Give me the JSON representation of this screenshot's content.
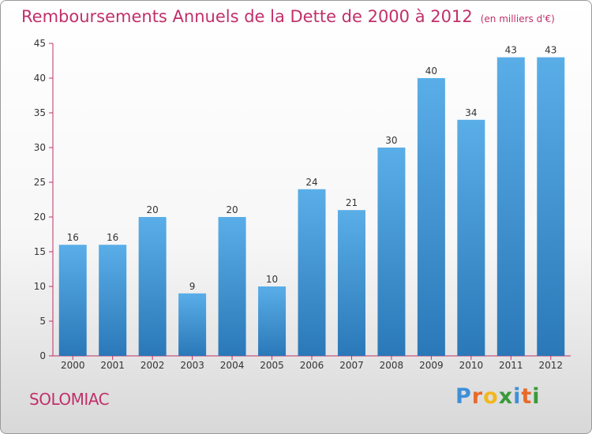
{
  "header": {
    "title": "Remboursements Annuels de la Dette de 2000 à 2012",
    "unit": "(en milliers d'€)"
  },
  "footer": {
    "commune": "SOLOMIAC",
    "brand_letters": [
      {
        "char": "P",
        "color": "#3f8fd8"
      },
      {
        "char": "r",
        "color": "#e86a2a"
      },
      {
        "char": "o",
        "color": "#f2b81c"
      },
      {
        "char": "x",
        "color": "#3a9a3a"
      },
      {
        "char": "i",
        "color": "#3f8fd8"
      },
      {
        "char": "t",
        "color": "#e86a2a"
      },
      {
        "char": "i",
        "color": "#3a9a3a"
      }
    ]
  },
  "chart_data": {
    "type": "bar",
    "title": "Remboursements Annuels de la Dette de 2000 à 2012",
    "categories": [
      "2000",
      "2001",
      "2002",
      "2003",
      "2004",
      "2005",
      "2006",
      "2007",
      "2008",
      "2009",
      "2010",
      "2011",
      "2012"
    ],
    "values": [
      16,
      16,
      20,
      9,
      20,
      10,
      24,
      21,
      30,
      40,
      34,
      43,
      43
    ],
    "ylim": [
      0,
      45
    ],
    "yticks": [
      0,
      5,
      10,
      15,
      20,
      25,
      30,
      35,
      40,
      45
    ],
    "grid": false,
    "bar_color_top": "#5aaee8",
    "bar_color_bottom": "#2a78b8",
    "axis_color": "#c0306a"
  }
}
